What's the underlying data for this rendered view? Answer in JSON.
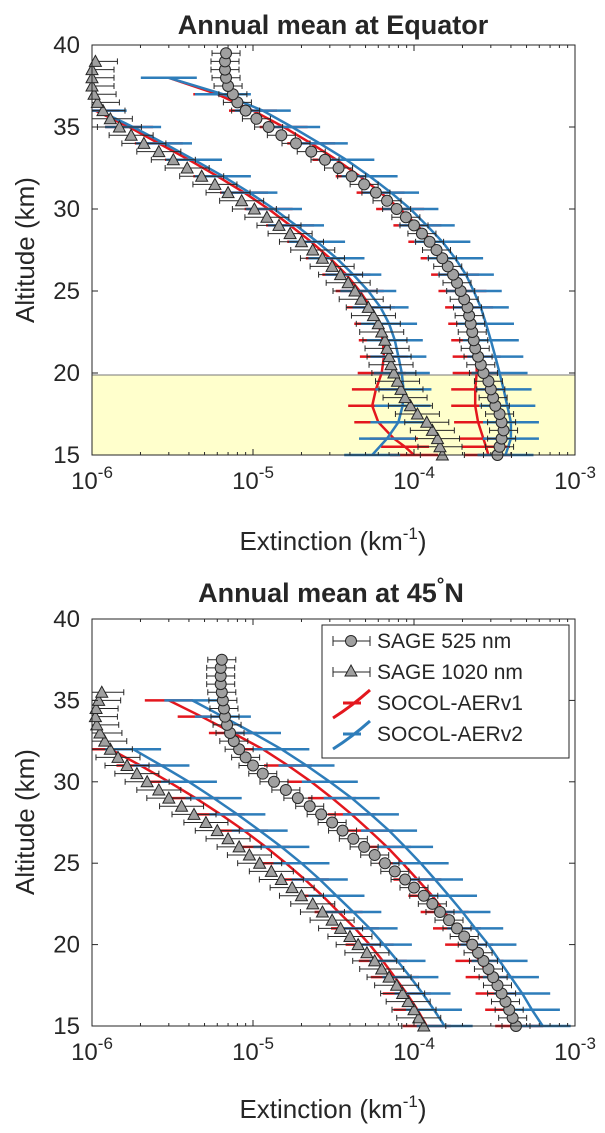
{
  "chart_data": [
    {
      "type": "line",
      "title": "Annual mean at Equator",
      "xlabel": "Extinction (km",
      "xlabel_exp": "-1",
      "xlabel_close": ")",
      "ylabel": "Altitude (km)",
      "xscale": "log",
      "xlim": [
        1e-06,
        0.001
      ],
      "ylim": [
        15,
        40
      ],
      "xticks": [
        {
          "base": "10",
          "exp": "-6"
        },
        {
          "base": "10",
          "exp": "-5"
        },
        {
          "base": "10",
          "exp": "-4"
        },
        {
          "base": "10",
          "exp": "-3"
        }
      ],
      "yticks": [
        "15",
        "20",
        "25",
        "30",
        "35",
        "40"
      ],
      "shaded_band": {
        "y": [
          15,
          20
        ],
        "color": "#ffffcc"
      },
      "series": [
        {
          "name": "SAGE 525 nm",
          "marker": "circle",
          "color": "#a0a0a0",
          "y": [
            15,
            15.5,
            16,
            16.5,
            17,
            17.5,
            18,
            18.5,
            19,
            19.5,
            20,
            20.5,
            21,
            21.5,
            22,
            22.5,
            23,
            23.5,
            24,
            24.5,
            25,
            25.5,
            26,
            26.5,
            27,
            27.5,
            28,
            28.5,
            29,
            29.5,
            30,
            30.5,
            31,
            31.5,
            32,
            32.5,
            33,
            33.5,
            34,
            34.5,
            35,
            35.5,
            36,
            36.5,
            37,
            37.5,
            38,
            38.5,
            39,
            39.5
          ],
          "x": [
            0.00033,
            0.00034,
            0.00035,
            0.00036,
            0.00035,
            0.00034,
            0.00032,
            0.00031,
            0.0003,
            0.00029,
            0.00027,
            0.00026,
            0.00025,
            0.00024,
            0.000235,
            0.00023,
            0.000225,
            0.00022,
            0.000215,
            0.000205,
            0.000195,
            0.000185,
            0.000175,
            0.000162,
            0.00015,
            0.000138,
            0.000125,
            0.000112,
            0.0001,
            8.9e-05,
            7.8e-05,
            6.8e-05,
            5.8e-05,
            4.9e-05,
            4.1e-05,
            3.4e-05,
            2.8e-05,
            2.3e-05,
            1.85e-05,
            1.5e-05,
            1.25e-05,
            1.05e-05,
            9e-06,
            8e-06,
            7.5e-06,
            7e-06,
            6.8e-06,
            6.7e-06,
            6.7e-06,
            6.8e-06
          ]
        },
        {
          "name": "SAGE 1020 nm",
          "marker": "triangle",
          "color": "#a0a0a0",
          "y": [
            15,
            15.5,
            16,
            16.5,
            17,
            17.5,
            18,
            18.5,
            19,
            19.5,
            20,
            20.5,
            21,
            21.5,
            22,
            22.5,
            23,
            23.5,
            24,
            24.5,
            25,
            25.5,
            26,
            26.5,
            27,
            27.5,
            28,
            28.5,
            29,
            29.5,
            30,
            30.5,
            31,
            31.5,
            32,
            32.5,
            33,
            33.5,
            34,
            34.5,
            35,
            35.5,
            36,
            36.5,
            37,
            37.5,
            38,
            38.5,
            39
          ],
          "x": [
            0.00015,
            0.000145,
            0.00014,
            0.00013,
            0.00012,
            0.000105,
            9.5e-05,
            8.8e-05,
            8.3e-05,
            7.9e-05,
            7.5e-05,
            7.2e-05,
            7e-05,
            6.8e-05,
            6.6e-05,
            6.3e-05,
            6e-05,
            5.6e-05,
            5.2e-05,
            4.7e-05,
            4.3e-05,
            3.9e-05,
            3.5e-05,
            3.1e-05,
            2.7e-05,
            2.35e-05,
            2e-05,
            1.7e-05,
            1.45e-05,
            1.22e-05,
            1.02e-05,
            8.5e-06,
            7e-06,
            5.8e-06,
            4.8e-06,
            3.9e-06,
            3.2e-06,
            2.6e-06,
            2.1e-06,
            1.75e-06,
            1.48e-06,
            1.3e-06,
            1.17e-06,
            1.08e-06,
            1.03e-06,
            1e-06,
            1e-06,
            1e-06,
            1.05e-06
          ]
        },
        {
          "name": "SOCOL-AERv1",
          "color": "#e3171e",
          "lines": [
            {
              "y": [
                15,
                15.5,
                16,
                17,
                18,
                19,
                20,
                21,
                22,
                23,
                24,
                25,
                26,
                27,
                28,
                29,
                30,
                31,
                32,
                33,
                34,
                35,
                36,
                37,
                38
              ],
              "x": [
                0.00029,
                0.00028,
                0.00027,
                0.00025,
                0.00024,
                0.00024,
                0.000245,
                0.000245,
                0.00024,
                0.00023,
                0.00022,
                0.0002,
                0.00018,
                0.000155,
                0.00013,
                0.000105,
                8.2e-05,
                6.2e-05,
                4.6e-05,
                3.3e-05,
                2.3e-05,
                1.55e-05,
                1e-05,
                6e-06,
                3e-06
              ]
            },
            {
              "y": [
                15,
                15.5,
                16,
                17,
                18,
                19,
                20,
                21,
                22,
                23,
                24,
                25,
                26,
                27,
                28,
                29,
                30,
                31,
                32,
                33,
                34,
                35,
                36
              ],
              "x": [
                0.0001,
                8.8e-05,
                7.5e-05,
                6e-05,
                5.5e-05,
                5.8e-05,
                6.3e-05,
                6.5e-05,
                6.4e-05,
                6e-05,
                5.4e-05,
                4.6e-05,
                3.8e-05,
                3e-05,
                2.3e-05,
                1.7e-05,
                1.25e-05,
                8.8e-06,
                6e-06,
                4e-06,
                2.6e-06,
                1.7e-06,
                1.05e-06
              ]
            }
          ]
        },
        {
          "name": "SOCOL-AERv2",
          "color": "#2e7dba",
          "lines": [
            {
              "y": [
                15,
                16,
                17,
                18,
                19,
                20,
                21,
                22,
                23,
                24,
                25,
                26,
                27,
                28,
                29,
                30,
                31,
                32,
                33,
                34,
                35,
                36,
                37,
                38
              ],
              "x": [
                0.00037,
                0.0004,
                0.0004,
                0.00038,
                0.00036,
                0.00034,
                0.00032,
                0.0003,
                0.00028,
                0.00026,
                0.000235,
                0.00021,
                0.00018,
                0.00015,
                0.00012,
                9.5e-05,
                7.2e-05,
                5.3e-05,
                3.8e-05,
                2.6e-05,
                1.75e-05,
                1.15e-05,
                6.5e-06,
                3e-06
              ]
            },
            {
              "y": [
                15,
                16,
                17,
                18,
                19,
                20,
                21,
                22,
                23,
                24,
                25,
                26,
                27,
                28,
                29,
                30,
                31,
                32,
                33,
                34,
                35,
                36
              ],
              "x": [
                5.5e-05,
                6.8e-05,
                8e-05,
                8.5e-05,
                8.6e-05,
                8.4e-05,
                8e-05,
                7.6e-05,
                7e-05,
                6.2e-05,
                5.2e-05,
                4.2e-05,
                3.3e-05,
                2.5e-05,
                1.85e-05,
                1.35e-05,
                9.5e-06,
                6.5e-06,
                4.3e-06,
                2.8e-06,
                1.8e-06,
                1.1e-06
              ]
            }
          ]
        }
      ]
    },
    {
      "type": "line",
      "title": "Annual mean at 45",
      "title_deg": "°",
      "title_end": "N",
      "xlabel": "Extinction (km",
      "xlabel_exp": "-1",
      "xlabel_close": ")",
      "ylabel": "Altitude (km)",
      "xscale": "log",
      "xlim": [
        1e-06,
        0.001
      ],
      "ylim": [
        15,
        40
      ],
      "xticks": [
        {
          "base": "10",
          "exp": "-6"
        },
        {
          "base": "10",
          "exp": "-5"
        },
        {
          "base": "10",
          "exp": "-4"
        },
        {
          "base": "10",
          "exp": "-3"
        }
      ],
      "yticks": [
        "15",
        "20",
        "25",
        "30",
        "35",
        "40"
      ],
      "legend": "top-right",
      "series": [
        {
          "name": "SAGE 525 nm",
          "marker": "circle",
          "color": "#a0a0a0",
          "y": [
            15,
            15.5,
            16,
            16.5,
            17,
            17.5,
            18,
            18.5,
            19,
            19.5,
            20,
            20.5,
            21,
            21.5,
            22,
            22.5,
            23,
            23.5,
            24,
            24.5,
            25,
            25.5,
            26,
            26.5,
            27,
            27.5,
            28,
            28.5,
            29,
            29.5,
            30,
            30.5,
            31,
            31.5,
            32,
            32.5,
            33,
            33.5,
            34,
            34.5,
            35,
            35.5,
            36,
            36.5,
            37,
            37.5
          ],
          "x": [
            0.00043,
            0.00041,
            0.00039,
            0.00037,
            0.00035,
            0.00033,
            0.00031,
            0.00029,
            0.00027,
            0.00025,
            0.00023,
            0.000205,
            0.000185,
            0.000165,
            0.000145,
            0.00013,
            0.000115,
            0.0001,
            8.8e-05,
            7.6e-05,
            6.6e-05,
            5.7e-05,
            4.9e-05,
            4.2e-05,
            3.6e-05,
            3.1e-05,
            2.65e-05,
            2.25e-05,
            1.9e-05,
            1.6e-05,
            1.35e-05,
            1.15e-05,
            1e-05,
            9e-06,
            8.2e-06,
            7.6e-06,
            7.2e-06,
            6.9e-06,
            6.7e-06,
            6.6e-06,
            6.5e-06,
            6.4e-06,
            6.3e-06,
            6.3e-06,
            6.3e-06,
            6.4e-06
          ]
        },
        {
          "name": "SAGE 1020 nm",
          "marker": "triangle",
          "color": "#a0a0a0",
          "y": [
            15,
            15.5,
            16,
            16.5,
            17,
            17.5,
            18,
            18.5,
            19,
            19.5,
            20,
            20.5,
            21,
            21.5,
            22,
            22.5,
            23,
            23.5,
            24,
            24.5,
            25,
            25.5,
            26,
            26.5,
            27,
            27.5,
            28,
            28.5,
            29,
            29.5,
            30,
            30.5,
            31,
            31.5,
            32,
            32.5,
            33,
            33.5,
            34,
            34.5,
            35,
            35.5
          ],
          "x": [
            0.000115,
            0.000107,
            0.0001,
            9.2e-05,
            8.5e-05,
            7.8e-05,
            7e-05,
            6.3e-05,
            5.7e-05,
            5.1e-05,
            4.5e-05,
            4e-05,
            3.5e-05,
            3.1e-05,
            2.7e-05,
            2.35e-05,
            2e-05,
            1.75e-05,
            1.5e-05,
            1.3e-05,
            1.1e-05,
            9.5e-06,
            8.2e-06,
            7e-06,
            6e-06,
            5.1e-06,
            4.3e-06,
            3.6e-06,
            3e-06,
            2.6e-06,
            2.2e-06,
            1.9e-06,
            1.65e-06,
            1.45e-06,
            1.3e-06,
            1.2e-06,
            1.12e-06,
            1.07e-06,
            1.05e-06,
            1.06e-06,
            1.1e-06,
            1.15e-06
          ]
        },
        {
          "name": "SOCOL-AERv1",
          "color": "#e3171e",
          "lines": [
            {
              "y": [
                15,
                16,
                17,
                18,
                19,
                20,
                21,
                22,
                23,
                24,
                25,
                26,
                27,
                28,
                29,
                30,
                31,
                32,
                33,
                34,
                35
              ],
              "x": [
                0.00045,
                0.00039,
                0.00034,
                0.000295,
                0.000255,
                0.00022,
                0.000185,
                0.000155,
                0.00013,
                0.000105,
                8.5e-05,
                6.8e-05,
                5.3e-05,
                4.1e-05,
                3.1e-05,
                2.3e-05,
                1.65e-05,
                1.15e-05,
                7.5e-06,
                4.8e-06,
                3e-06
              ]
            },
            {
              "y": [
                15,
                16,
                17,
                18,
                19,
                20,
                21,
                22,
                23,
                24,
                25,
                26,
                27,
                28,
                29,
                30,
                31,
                32
              ],
              "x": [
                0.00012,
                0.000105,
                9e-05,
                7.6e-05,
                6.4e-05,
                5.3e-05,
                4.3e-05,
                3.4e-05,
                2.7e-05,
                2.1e-05,
                1.6e-05,
                1.2e-05,
                8.8e-06,
                6.3e-06,
                4.4e-06,
                3e-06,
                2e-06,
                1.3e-06
              ]
            }
          ]
        },
        {
          "name": "SOCOL-AERv2",
          "color": "#2e7dba",
          "lines": [
            {
              "y": [
                15,
                16,
                17,
                18,
                19,
                20,
                21,
                22,
                23,
                24,
                25,
                26,
                27,
                28,
                29,
                30,
                31,
                32,
                33,
                34,
                35
              ],
              "x": [
                0.00063,
                0.00054,
                0.00047,
                0.0004,
                0.00034,
                0.00029,
                0.00024,
                0.0002,
                0.000165,
                0.000135,
                0.00011,
                8.8e-05,
                7e-05,
                5.4e-05,
                4.1e-05,
                3e-05,
                2.15e-05,
                1.5e-05,
                1e-05,
                6.5e-06,
                4.2e-06
              ]
            },
            {
              "y": [
                15,
                16,
                17,
                18,
                19,
                20,
                21,
                22,
                23,
                24,
                25,
                26,
                27,
                28,
                29,
                30,
                31,
                32
              ],
              "x": [
                0.000155,
                0.000133,
                0.000113,
                9.5e-05,
                7.9e-05,
                6.5e-05,
                5.3e-05,
                4.2e-05,
                3.3e-05,
                2.6e-05,
                2e-05,
                1.5e-05,
                1.1e-05,
                8e-06,
                5.7e-06,
                4e-06,
                2.7e-06,
                1.8e-06
              ]
            }
          ]
        }
      ]
    }
  ]
}
